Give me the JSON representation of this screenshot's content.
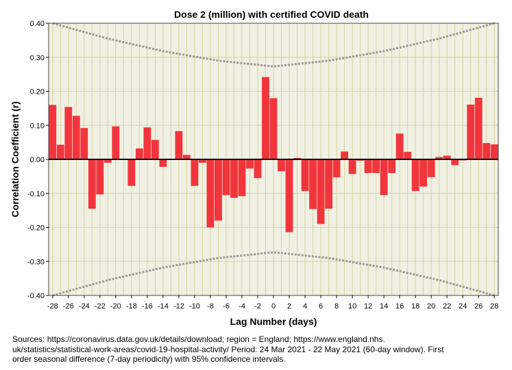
{
  "chart_data": {
    "type": "bar",
    "title": "Dose 2 (million) with certified COVID death",
    "xlabel": "Lag Number (days)",
    "ylabel": "Correlation Coefficient (r)",
    "ylim": [
      -0.4,
      0.4
    ],
    "grid": true,
    "y_ticks": [
      -0.4,
      -0.3,
      -0.2,
      -0.1,
      0.0,
      0.1,
      0.2,
      0.3,
      0.4
    ],
    "y_tick_labels": [
      "-0.40",
      "-0.30",
      "-0.20",
      "-0.10",
      "0.00",
      "0.10",
      "0.20",
      "0.30",
      "0.40"
    ],
    "x_tick_values": [
      -28,
      -26,
      -24,
      -22,
      -20,
      -18,
      -16,
      -14,
      -12,
      -10,
      -8,
      -6,
      -4,
      -2,
      0,
      2,
      4,
      6,
      8,
      10,
      12,
      14,
      16,
      18,
      20,
      22,
      24,
      26,
      28
    ],
    "x_tick_labels": [
      "-28",
      "-26",
      "-24",
      "-22",
      "-20",
      "-18",
      "-16",
      "-14",
      "-12",
      "-10",
      "-8",
      "-6",
      "-4",
      "-2",
      "0",
      "2",
      "4",
      "6",
      "8",
      "10",
      "12",
      "14",
      "16",
      "18",
      "20",
      "22",
      "24",
      "26",
      "28"
    ],
    "lags": [
      -28,
      -27,
      -26,
      -25,
      -24,
      -23,
      -22,
      -21,
      -20,
      -19,
      -18,
      -17,
      -16,
      -15,
      -14,
      -13,
      -12,
      -11,
      -10,
      -9,
      -8,
      -7,
      -6,
      -5,
      -4,
      -3,
      -2,
      -1,
      0,
      1,
      2,
      3,
      4,
      5,
      6,
      7,
      8,
      9,
      10,
      11,
      12,
      13,
      14,
      15,
      16,
      17,
      18,
      19,
      20,
      21,
      22,
      23,
      24,
      25,
      26,
      27,
      28
    ],
    "values": [
      0.16,
      0.043,
      0.154,
      0.128,
      0.092,
      -0.145,
      -0.103,
      -0.01,
      0.097,
      0,
      -0.078,
      0.032,
      0.094,
      0.057,
      -0.022,
      0,
      0.083,
      0.013,
      -0.078,
      -0.01,
      -0.2,
      -0.18,
      -0.105,
      -0.113,
      -0.108,
      -0.027,
      -0.055,
      0.242,
      0.18,
      -0.035,
      -0.214,
      0.004,
      -0.093,
      -0.146,
      -0.19,
      -0.145,
      -0.053,
      0.023,
      -0.043,
      -0.004,
      -0.04,
      -0.04,
      -0.105,
      -0.04,
      0.076,
      0.022,
      -0.093,
      -0.08,
      -0.052,
      0.007,
      0.011,
      -0.017,
      -0.003,
      0.161,
      0.181,
      0.048,
      0.044
    ],
    "confidence_interval": {
      "label": "95% confidence intervals",
      "upper_at_lag": [
        [
          -28,
          0.4
        ],
        [
          -21,
          0.355
        ],
        [
          -14,
          0.318
        ],
        [
          -7,
          0.29
        ],
        [
          0,
          0.273
        ],
        [
          7,
          0.29
        ],
        [
          14,
          0.318
        ],
        [
          21,
          0.355
        ],
        [
          28,
          0.4
        ]
      ],
      "lower_at_lag": [
        [
          -28,
          -0.4
        ],
        [
          -21,
          -0.355
        ],
        [
          -14,
          -0.318
        ],
        [
          -7,
          -0.29
        ],
        [
          0,
          -0.273
        ],
        [
          7,
          -0.29
        ],
        [
          14,
          -0.318
        ],
        [
          21,
          -0.355
        ],
        [
          28,
          -0.4
        ]
      ]
    },
    "colors": {
      "bar": "#f2353c",
      "plot_bg": "#f0f0e4",
      "grid": "#d8d39a",
      "ci": "#999999",
      "zero": "#000000"
    }
  },
  "source_lines": [
    "Sources: https://coronavirus.data.gov.uk/details/download; region = England; https://www.england.nhs.",
    "uk/statistics/statistical-work-areas/covid-19-hospital-activity/ Period: 24 Mar 2021 - 22 May 2021 (60-day window). First",
    "order seasonal difference (7-day periodicity) with 95% confidence intervals."
  ]
}
